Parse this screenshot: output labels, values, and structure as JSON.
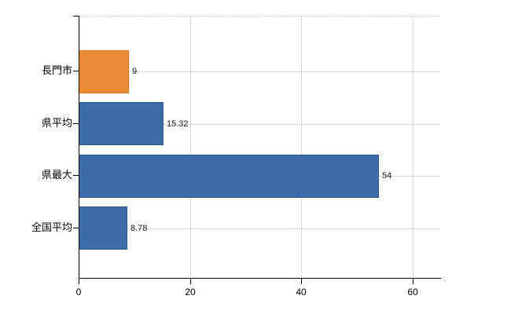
{
  "chart_data": {
    "type": "bar",
    "orientation": "horizontal",
    "title": "",
    "xlabel": "",
    "ylabel": "",
    "categories": [
      "長門市",
      "県平均",
      "県最大",
      "全国平均"
    ],
    "values": [
      9,
      15.32,
      54,
      8.78
    ],
    "value_labels": [
      "9",
      "15.32",
      "54",
      "8.78"
    ],
    "bar_colors": [
      "#ec8b35",
      "#3c6ca9",
      "#3c6ca9",
      "#3c6ca9"
    ],
    "bar_border_colors": [
      "#cf7420",
      "#2d578f",
      "#2d578f",
      "#2d578f"
    ],
    "x_tick_labels": [
      "0",
      "20",
      "40",
      "60"
    ],
    "x_tick_values": [
      0,
      20,
      40,
      60
    ],
    "xlim": [
      0,
      65
    ],
    "grid": "on",
    "legend_position": "none",
    "colors": {
      "background": "#ffffff",
      "axis": "#000000",
      "vertical_gridline": "#d9d9d9",
      "horizontal_gridline": "#d4dad4",
      "plot_top_border": "#c9c9c9",
      "value_label_text": "#1a1a1a"
    }
  }
}
